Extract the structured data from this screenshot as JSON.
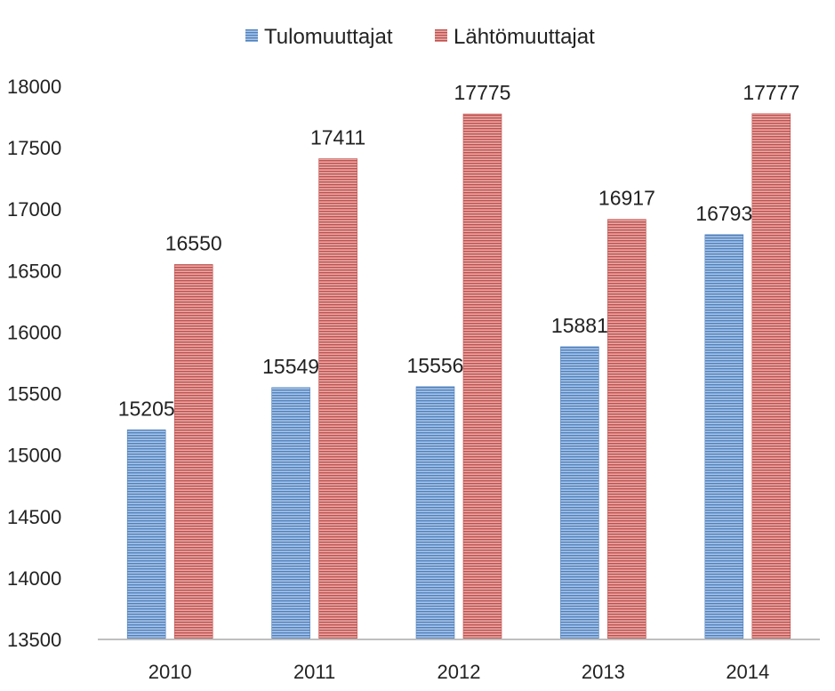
{
  "chart_data": {
    "type": "bar",
    "categories": [
      "2010",
      "2011",
      "2012",
      "2013",
      "2014"
    ],
    "series": [
      {
        "name": "Tulomuuttajat",
        "values": [
          15205,
          15549,
          15556,
          15881,
          16793
        ],
        "color": "#4f81bd"
      },
      {
        "name": "Lähtömuuttajat",
        "values": [
          16550,
          17411,
          17775,
          16917,
          17777
        ],
        "color": "#c0504d"
      }
    ],
    "data_labels": {
      "Tulomuuttajat": [
        "15205",
        "15549",
        "15556",
        "15881",
        "16793"
      ],
      "Lähtömuuttajat": [
        "16550",
        "17411",
        "17775",
        "16917",
        "17777"
      ]
    },
    "ylim": [
      13500,
      18000
    ],
    "yticks": [
      13500,
      14000,
      14500,
      15000,
      15500,
      16000,
      16500,
      17000,
      17500,
      18000
    ],
    "ytick_labels": [
      "13500",
      "14000",
      "14500",
      "15000",
      "15500",
      "16000",
      "16500",
      "17000",
      "17500",
      "18000"
    ],
    "legend_position": "top-center",
    "grid": false
  }
}
